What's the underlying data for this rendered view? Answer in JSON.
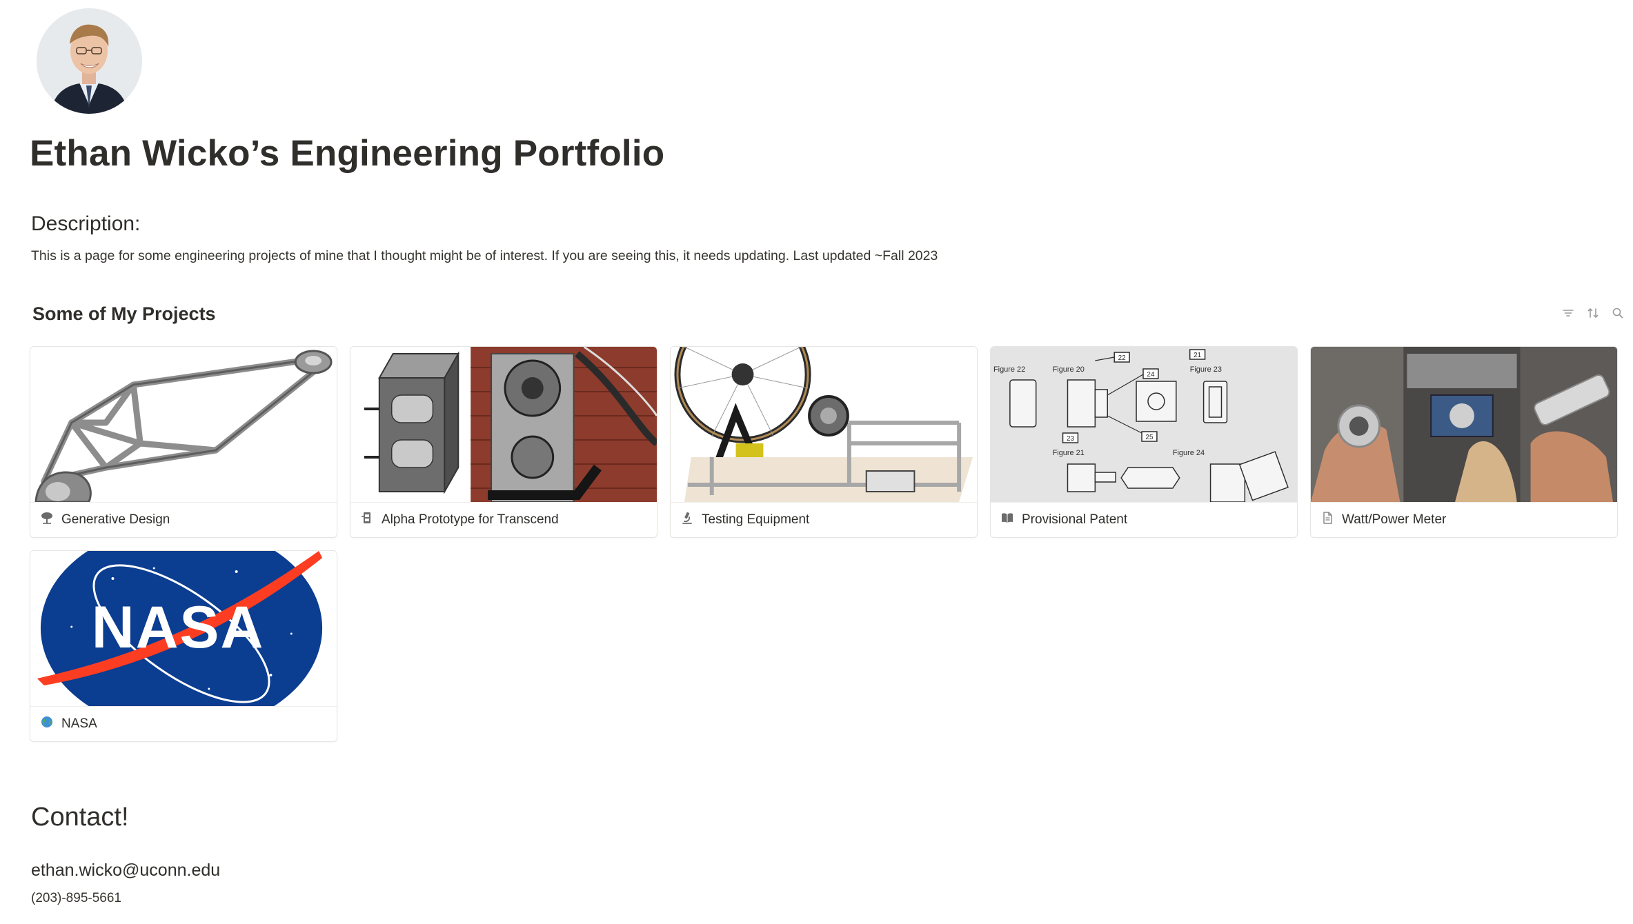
{
  "profile": {
    "avatar_alt": "profile photo"
  },
  "page": {
    "title": "Ethan Wicko’s Engineering Portfolio"
  },
  "description": {
    "heading": "Description:",
    "text": "This is a page for some engineering projects of mine that I thought might be of interest. If you are seeing this, it needs updating. Last updated ~Fall 2023"
  },
  "projects": {
    "title": "Some of My Projects",
    "tools": [
      {
        "icon": "filter-icon"
      },
      {
        "icon": "sort-icon"
      },
      {
        "icon": "search-icon"
      }
    ],
    "cards": [
      {
        "label": "Generative Design",
        "icon": "tree-icon"
      },
      {
        "label": "Alpha Prototype for Transcend",
        "icon": "bike-icon"
      },
      {
        "label": "Testing Equipment",
        "icon": "microscope-icon"
      },
      {
        "label": "Provisional Patent",
        "icon": "book-icon"
      },
      {
        "label": "Watt/Power Meter",
        "icon": "page-icon"
      },
      {
        "label": "NASA",
        "icon": "globe-icon"
      }
    ],
    "patent_figure_labels": [
      "Figure 22",
      "Figure 20",
      "Figure 23",
      "Figure 21",
      "Figure 24",
      "22",
      "21",
      "24",
      "23",
      "25"
    ],
    "nasa_logo_text": "NASA"
  },
  "contact": {
    "heading": "Contact!",
    "email": "ethan.wicko@uconn.edu",
    "phone": "(203)-895-5661"
  }
}
